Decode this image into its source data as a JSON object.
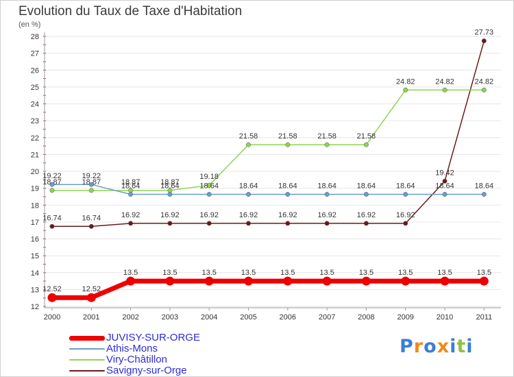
{
  "chart_data": {
    "type": "line",
    "title": "Evolution du Taux de Taxe d'Habitation",
    "ylabel": "(en %)",
    "x": [
      "2000",
      "2001",
      "2002",
      "2003",
      "2004",
      "2005",
      "2006",
      "2007",
      "2008",
      "2009",
      "2010",
      "2011"
    ],
    "ylim": [
      12,
      28
    ],
    "yticks": [
      "12",
      "13",
      "14",
      "15",
      "16",
      "17",
      "18",
      "19",
      "20",
      "21",
      "22",
      "23",
      "24",
      "25",
      "26",
      "27",
      "28"
    ],
    "grid": "horizontal",
    "legend_position": "bottom-left",
    "series": [
      {
        "name": "JUVISY-SUR-ORGE",
        "color": "#ee0000",
        "values": [
          12.52,
          12.52,
          13.5,
          13.5,
          13.5,
          13.5,
          13.5,
          13.5,
          13.5,
          13.5,
          13.5,
          13.5
        ],
        "labels": [
          "12.52",
          "12.52",
          "13.5",
          "13.5",
          "13.5",
          "13.5",
          "13.5",
          "13.5",
          "13.5",
          "13.5",
          "13.5",
          "13.5"
        ]
      },
      {
        "name": "Athis-Mons",
        "color": "#6a9ccf",
        "values": [
          19.22,
          19.22,
          18.64,
          18.64,
          18.64,
          18.64,
          18.64,
          18.64,
          18.64,
          18.64,
          18.64,
          18.64
        ],
        "labels": [
          "19.22",
          "19.22",
          "18.64",
          "18.64",
          "18.64",
          "18.64",
          "18.64",
          "18.64",
          "18.64",
          "18.64",
          "18.64",
          "18.64"
        ]
      },
      {
        "name": "Viry-Châtillon",
        "color": "#8fd44e",
        "values": [
          18.87,
          18.87,
          18.87,
          18.87,
          19.18,
          21.58,
          21.58,
          21.58,
          21.58,
          24.82,
          24.82,
          24.82
        ],
        "labels": [
          "18.87",
          "18.87",
          "18.87",
          "18.87",
          "19.18",
          "21.58",
          "21.58",
          "21.58",
          "21.58",
          "24.82",
          "24.82",
          "24.82"
        ]
      },
      {
        "name": "Savigny-sur-Orge",
        "color": "#6b1a1a",
        "values": [
          16.74,
          16.74,
          16.92,
          16.92,
          16.92,
          16.92,
          16.92,
          16.92,
          16.92,
          16.92,
          19.42,
          27.73
        ],
        "labels": [
          "16.74",
          "16.74",
          "16.92",
          "16.92",
          "16.92",
          "16.92",
          "16.92",
          "16.92",
          "16.92",
          "16.92",
          "19.42",
          "27.73"
        ]
      }
    ]
  },
  "watermark": {
    "letters": [
      "P",
      "r",
      "o",
      "x",
      "i",
      "t",
      "i"
    ],
    "colors": [
      "#3b7fd4",
      "#f08a1c",
      "#3b7fd4",
      "#f08a1c",
      "#3b7fd4",
      "#8fc23c",
      "#3b7fd4"
    ]
  }
}
